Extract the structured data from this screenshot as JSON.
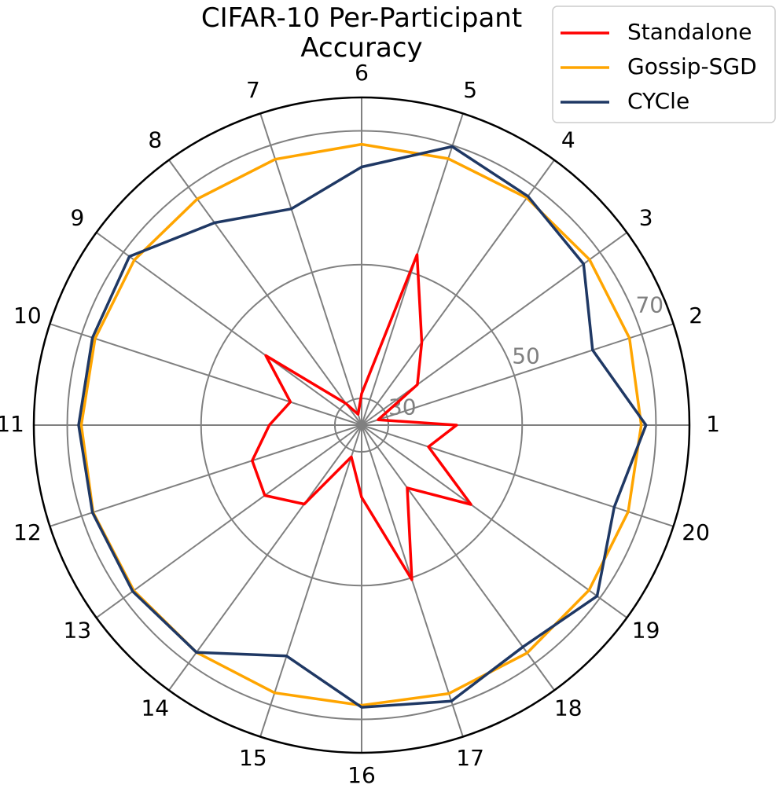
{
  "chart_data": {
    "type": "radar",
    "title": "CIFAR-10 Per-Participant Accuracy",
    "categories": [
      "1",
      "2",
      "3",
      "4",
      "5",
      "6",
      "7",
      "8",
      "9",
      "10",
      "11",
      "12",
      "13",
      "14",
      "15",
      "16",
      "17",
      "18",
      "19",
      "20"
    ],
    "series": [
      {
        "name": "Standalone",
        "color": "#ff0000",
        "values": [
          40.2,
          28.6,
          36.3,
          41.3,
          52.8,
          30.7,
          27.7,
          30.0,
          43.7,
          37.2,
          39.8,
          43.2,
          43.9,
          40.6,
          31.0,
          36.8,
          50.3,
          37.6,
          46.2,
          36.5
        ]
      },
      {
        "name": "Gossip-SGD",
        "color": "#ffa500",
        "values": [
          67.8,
          68.1,
          68.1,
          68.0,
          67.9,
          68.0,
          67.8,
          67.8,
          68.0,
          67.9,
          67.9,
          68.2,
          68.1,
          68.0,
          68.1,
          67.9,
          68.2,
          68.1,
          68.0,
          67.9
        ]
      },
      {
        "name": "CYCle",
        "color": "#1f3864",
        "values": [
          68.5,
          62.3,
          67.0,
          68.3,
          69.8,
          64.6,
          60.0,
          63.4,
          68.9,
          68.3,
          68.3,
          68.3,
          68.3,
          68.0,
          62.3,
          68.2,
          69.4,
          67.0,
          69.5,
          65.7
        ]
      }
    ],
    "ylim": [
      26,
      75
    ],
    "yticks": [
      30,
      50,
      70
    ],
    "grid": true,
    "legend": "upper right"
  }
}
